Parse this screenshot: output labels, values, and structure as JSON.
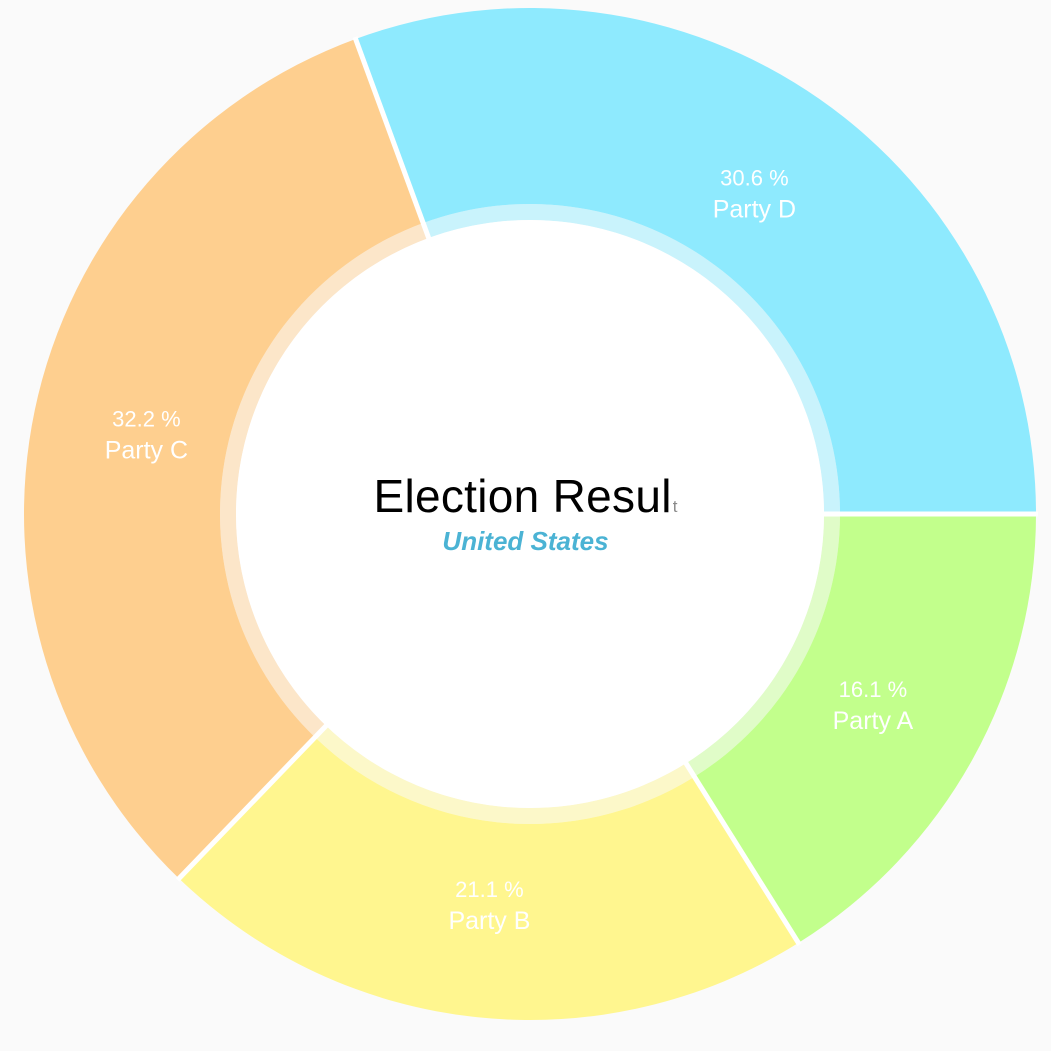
{
  "chart_data": {
    "type": "pie",
    "donut": true,
    "title": "Election Resul",
    "title_tail": "t",
    "subtitle": "United States",
    "slices": [
      {
        "name": "Party A",
        "value": 16.1,
        "percent_label": "16.1 %",
        "color": "#c2ff8c"
      },
      {
        "name": "Party B",
        "value": 21.1,
        "percent_label": "21.1 %",
        "color": "#fff68f"
      },
      {
        "name": "Party C",
        "value": 32.2,
        "percent_label": "32.2 %",
        "color": "#fecf8f"
      },
      {
        "name": "Party D",
        "value": 30.6,
        "percent_label": "30.6 %",
        "color": "#8eeafe"
      }
    ],
    "start_angle_deg": 0,
    "direction": "clockwise"
  },
  "colors": {
    "background": "#fafafa",
    "separator": "#ffffff",
    "subtitle": "#4bb3d4"
  }
}
